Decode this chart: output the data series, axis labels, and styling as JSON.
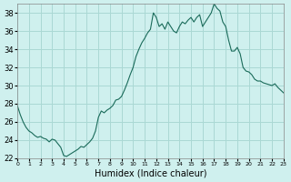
{
  "xlabel": "Humidex (Indice chaleur)",
  "ylabel": "",
  "background_color": "#cff0ee",
  "grid_color": "#aad8d4",
  "line_color": "#1a6b5a",
  "xlim": [
    0,
    23
  ],
  "ylim": [
    22,
    39
  ],
  "yticks": [
    22,
    24,
    26,
    28,
    30,
    32,
    34,
    36,
    38
  ],
  "xticks": [
    0,
    1,
    2,
    3,
    4,
    5,
    6,
    7,
    8,
    9,
    10,
    11,
    12,
    13,
    14,
    15,
    16,
    17,
    18,
    19,
    20,
    21,
    22,
    23
  ],
  "x": [
    0,
    0.25,
    0.5,
    0.75,
    1.0,
    1.25,
    1.5,
    1.75,
    2.0,
    2.25,
    2.5,
    2.75,
    3.0,
    3.25,
    3.5,
    3.75,
    4.0,
    4.25,
    4.5,
    4.75,
    5.0,
    5.25,
    5.5,
    5.75,
    6.0,
    6.25,
    6.5,
    6.75,
    7.0,
    7.25,
    7.5,
    7.75,
    8.0,
    8.25,
    8.5,
    8.75,
    9.0,
    9.25,
    9.5,
    9.75,
    10.0,
    10.25,
    10.5,
    10.75,
    11.0,
    11.25,
    11.5,
    11.75,
    12.0,
    12.25,
    12.5,
    12.75,
    13.0,
    13.25,
    13.5,
    13.75,
    14.0,
    14.25,
    14.5,
    14.75,
    15.0,
    15.25,
    15.5,
    15.75,
    16.0,
    16.25,
    16.5,
    16.75,
    17.0,
    17.25,
    17.5,
    17.75,
    18.0,
    18.25,
    18.5,
    18.75,
    19.0,
    19.25,
    19.5,
    19.75,
    20.0,
    20.25,
    20.5,
    20.75,
    21.0,
    21.25,
    21.5,
    21.75,
    22.0,
    22.25,
    22.5,
    22.75,
    23.0
  ],
  "y": [
    27.8,
    26.8,
    26.0,
    25.4,
    25.0,
    24.8,
    24.5,
    24.3,
    24.4,
    24.2,
    24.1,
    23.8,
    24.1,
    24.0,
    23.6,
    23.2,
    22.3,
    22.2,
    22.4,
    22.6,
    22.8,
    23.0,
    23.3,
    23.2,
    23.5,
    23.8,
    24.2,
    25.0,
    26.5,
    27.2,
    27.0,
    27.3,
    27.5,
    27.8,
    28.4,
    28.5,
    28.8,
    29.5,
    30.3,
    31.2,
    32.0,
    33.2,
    34.0,
    34.7,
    35.2,
    35.8,
    36.2,
    38.0,
    37.5,
    36.5,
    36.8,
    36.2,
    37.0,
    36.5,
    36.0,
    35.8,
    36.5,
    37.0,
    36.8,
    37.2,
    37.5,
    37.0,
    37.5,
    37.8,
    36.5,
    37.0,
    37.5,
    38.0,
    39.0,
    38.5,
    38.2,
    37.0,
    36.5,
    35.0,
    33.8,
    33.8,
    34.2,
    33.5,
    32.0,
    31.6,
    31.5,
    31.2,
    30.7,
    30.5,
    30.5,
    30.3,
    30.2,
    30.1,
    30.0,
    30.2,
    29.8,
    29.5,
    29.2
  ]
}
